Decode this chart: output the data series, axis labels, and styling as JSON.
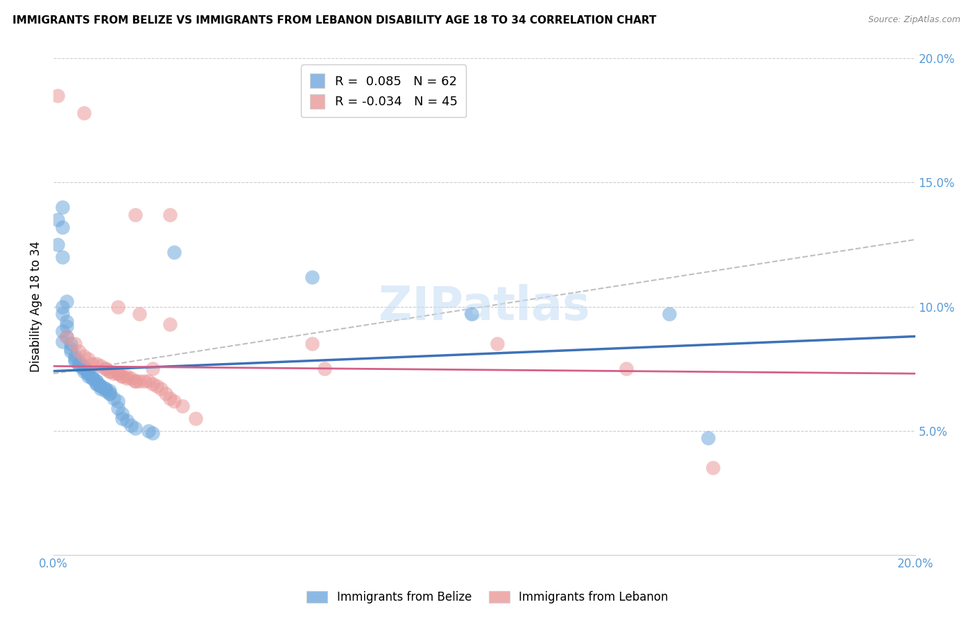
{
  "title": "IMMIGRANTS FROM BELIZE VS IMMIGRANTS FROM LEBANON DISABILITY AGE 18 TO 34 CORRELATION CHART",
  "source": "Source: ZipAtlas.com",
  "ylabel": "Disability Age 18 to 34",
  "belize_color": "#6fa8dc",
  "lebanon_color": "#ea9999",
  "belize_line_color": "#3d72b8",
  "lebanon_line_color": "#d45f8a",
  "dashed_line_color": "#b0b0b0",
  "x_min": 0.0,
  "x_max": 0.2,
  "y_min": 0.0,
  "y_max": 0.2,
  "watermark": "ZIPatlas",
  "legend_entries": [
    {
      "label": "R =  0.085   N = 62",
      "color": "#6fa8dc"
    },
    {
      "label": "R = -0.034   N = 45",
      "color": "#ea9999"
    }
  ],
  "legend_bottom": [
    {
      "label": "Immigrants from Belize",
      "color": "#6fa8dc"
    },
    {
      "label": "Immigrants from Lebanon",
      "color": "#ea9999"
    }
  ],
  "belize_points": [
    [
      0.001,
      0.135
    ],
    [
      0.002,
      0.14
    ],
    [
      0.002,
      0.132
    ],
    [
      0.001,
      0.125
    ],
    [
      0.002,
      0.12
    ],
    [
      0.002,
      0.1
    ],
    [
      0.003,
      0.102
    ],
    [
      0.002,
      0.097
    ],
    [
      0.003,
      0.094
    ],
    [
      0.003,
      0.092
    ],
    [
      0.002,
      0.09
    ],
    [
      0.003,
      0.088
    ],
    [
      0.002,
      0.086
    ],
    [
      0.004,
      0.085
    ],
    [
      0.004,
      0.083
    ],
    [
      0.004,
      0.082
    ],
    [
      0.005,
      0.08
    ],
    [
      0.005,
      0.079
    ],
    [
      0.005,
      0.078
    ],
    [
      0.006,
      0.078
    ],
    [
      0.006,
      0.077
    ],
    [
      0.006,
      0.076
    ],
    [
      0.007,
      0.076
    ],
    [
      0.007,
      0.075
    ],
    [
      0.007,
      0.075
    ],
    [
      0.007,
      0.074
    ],
    [
      0.008,
      0.074
    ],
    [
      0.008,
      0.073
    ],
    [
      0.008,
      0.073
    ],
    [
      0.008,
      0.072
    ],
    [
      0.009,
      0.072
    ],
    [
      0.009,
      0.071
    ],
    [
      0.009,
      0.071
    ],
    [
      0.01,
      0.07
    ],
    [
      0.01,
      0.07
    ],
    [
      0.01,
      0.069
    ],
    [
      0.01,
      0.069
    ],
    [
      0.011,
      0.068
    ],
    [
      0.011,
      0.068
    ],
    [
      0.011,
      0.068
    ],
    [
      0.011,
      0.067
    ],
    [
      0.012,
      0.067
    ],
    [
      0.012,
      0.067
    ],
    [
      0.012,
      0.066
    ],
    [
      0.013,
      0.066
    ],
    [
      0.013,
      0.065
    ],
    [
      0.013,
      0.065
    ],
    [
      0.014,
      0.063
    ],
    [
      0.015,
      0.062
    ],
    [
      0.015,
      0.059
    ],
    [
      0.016,
      0.057
    ],
    [
      0.016,
      0.055
    ],
    [
      0.017,
      0.054
    ],
    [
      0.018,
      0.052
    ],
    [
      0.019,
      0.051
    ],
    [
      0.022,
      0.05
    ],
    [
      0.023,
      0.049
    ],
    [
      0.028,
      0.122
    ],
    [
      0.06,
      0.112
    ],
    [
      0.097,
      0.097
    ],
    [
      0.143,
      0.097
    ],
    [
      0.152,
      0.047
    ]
  ],
  "lebanon_points": [
    [
      0.001,
      0.185
    ],
    [
      0.007,
      0.178
    ],
    [
      0.019,
      0.137
    ],
    [
      0.015,
      0.1
    ],
    [
      0.02,
      0.097
    ],
    [
      0.027,
      0.137
    ],
    [
      0.027,
      0.093
    ],
    [
      0.003,
      0.088
    ],
    [
      0.005,
      0.085
    ],
    [
      0.006,
      0.082
    ],
    [
      0.007,
      0.08
    ],
    [
      0.008,
      0.079
    ],
    [
      0.009,
      0.077
    ],
    [
      0.01,
      0.077
    ],
    [
      0.011,
      0.076
    ],
    [
      0.012,
      0.075
    ],
    [
      0.012,
      0.075
    ],
    [
      0.013,
      0.074
    ],
    [
      0.013,
      0.074
    ],
    [
      0.014,
      0.073
    ],
    [
      0.015,
      0.073
    ],
    [
      0.015,
      0.073
    ],
    [
      0.016,
      0.072
    ],
    [
      0.016,
      0.072
    ],
    [
      0.017,
      0.072
    ],
    [
      0.017,
      0.071
    ],
    [
      0.018,
      0.071
    ],
    [
      0.019,
      0.07
    ],
    [
      0.019,
      0.07
    ],
    [
      0.02,
      0.07
    ],
    [
      0.021,
      0.07
    ],
    [
      0.022,
      0.07
    ],
    [
      0.023,
      0.069
    ],
    [
      0.024,
      0.068
    ],
    [
      0.025,
      0.067
    ],
    [
      0.026,
      0.065
    ],
    [
      0.027,
      0.063
    ],
    [
      0.028,
      0.062
    ],
    [
      0.03,
      0.06
    ],
    [
      0.033,
      0.055
    ],
    [
      0.023,
      0.075
    ],
    [
      0.06,
      0.085
    ],
    [
      0.063,
      0.075
    ],
    [
      0.103,
      0.085
    ],
    [
      0.133,
      0.075
    ],
    [
      0.153,
      0.035
    ]
  ],
  "belize_line": [
    [
      0.0,
      0.074
    ],
    [
      0.2,
      0.088
    ]
  ],
  "lebanon_line": [
    [
      0.0,
      0.076
    ],
    [
      0.2,
      0.073
    ]
  ],
  "dashed_line": [
    [
      0.0,
      0.073
    ],
    [
      0.2,
      0.127
    ]
  ]
}
